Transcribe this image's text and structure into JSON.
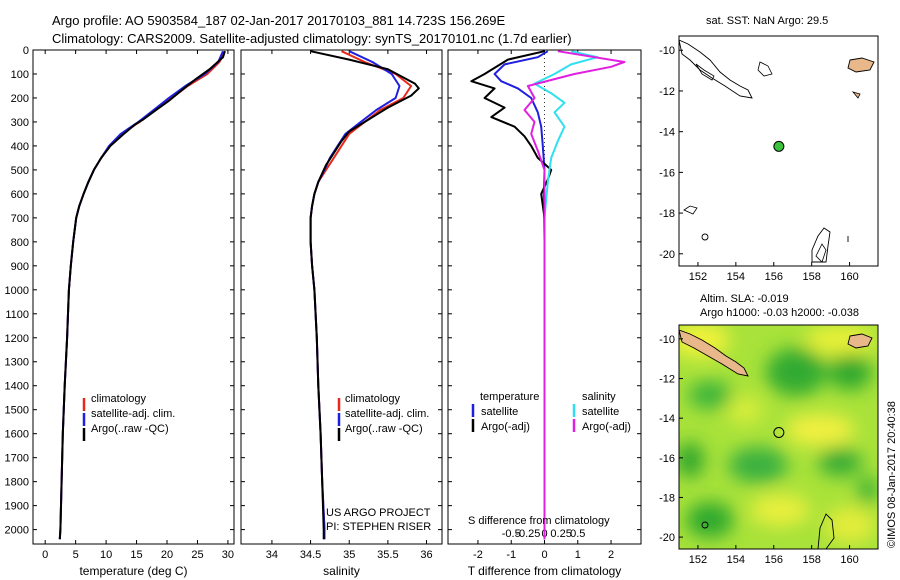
{
  "header": {
    "line1": "Argo profile: AO 5903584_187 02-Jan-2017 20170103_881 14.723S 156.269E",
    "line2": "Climatology: CARS2009. Satellite-adjusted climatology: synTS_20170101.nc (1.7d earlier)"
  },
  "colors": {
    "climatology": "#e8281a",
    "satellite": "#1f1fe0",
    "argo": "#000000",
    "sat_salinity": "#2ee0f0",
    "argo_salinity": "#e020e0",
    "float": "#3bc43b",
    "land": "#e8b88a"
  },
  "depth_ticks": [
    "0",
    "100",
    "200",
    "300",
    "400",
    "500",
    "600",
    "700",
    "800",
    "900",
    "1000",
    "1100",
    "1200",
    "1300",
    "1400",
    "1500",
    "1600",
    "1700",
    "1800",
    "1900",
    "2000"
  ],
  "labels": {
    "project": "US ARGO PROJECT",
    "pi": "PI: STEPHEN RISER",
    "sdiff": "S difference from climatology",
    "tdiff": "T difference from climatology",
    "sst": "sat. SST: NaN Argo: 29.5",
    "sla": "Altim. SLA: -0.019",
    "h": "Argo h1000: -0.03 h2000: -0.038",
    "credit": "©IMOS 08-Jan-2017 20:40:38"
  },
  "legend_profiles": [
    "climatology",
    "satellite-adj. clim.",
    "Argo(..raw -QC)"
  ],
  "legend_diff": {
    "temp_title": "temperature",
    "sal_title": "salinity",
    "satellite": "satellite",
    "argo": "Argo(-adj)"
  },
  "chart_data": [
    {
      "type": "line",
      "xlabel": "temperature (deg C)",
      "xlim": [
        -2,
        31
      ],
      "ylim": [
        2060,
        0
      ],
      "x_ticks": [
        0,
        5,
        10,
        15,
        20,
        25,
        30
      ],
      "x_tick_labels": [
        "0",
        "5",
        "10",
        "15",
        "20",
        "25",
        "30"
      ],
      "series": [
        {
          "name": "climatology",
          "color": "#e8281a",
          "values": [
            [
              29.5,
              5
            ],
            [
              28.6,
              50
            ],
            [
              26.6,
              100
            ],
            [
              23.4,
              150
            ],
            [
              20.8,
              200
            ],
            [
              18.0,
              250
            ],
            [
              15.5,
              300
            ],
            [
              12.5,
              350
            ],
            [
              10.6,
              400
            ],
            [
              9.2,
              450
            ],
            [
              8.0,
              500
            ],
            [
              7.1,
              550
            ],
            [
              6.3,
              600
            ],
            [
              5.6,
              650
            ],
            [
              5.1,
              700
            ],
            [
              4.6,
              800
            ],
            [
              4.2,
              900
            ],
            [
              3.9,
              1000
            ],
            [
              3.6,
              1200
            ],
            [
              3.2,
              1400
            ],
            [
              2.9,
              1600
            ],
            [
              2.7,
              1800
            ],
            [
              2.5,
              2000
            ],
            [
              2.4,
              2040
            ]
          ]
        },
        {
          "name": "satellite-adj. clim.",
          "color": "#1f1fe0",
          "values": [
            [
              29.2,
              5
            ],
            [
              28.4,
              50
            ],
            [
              26.2,
              100
            ],
            [
              23.0,
              150
            ],
            [
              20.3,
              200
            ],
            [
              17.8,
              250
            ],
            [
              15.3,
              300
            ],
            [
              12.4,
              350
            ],
            [
              10.5,
              400
            ],
            [
              9.2,
              450
            ],
            [
              8.0,
              500
            ],
            [
              7.1,
              550
            ],
            [
              6.3,
              600
            ],
            [
              5.6,
              650
            ],
            [
              5.1,
              700
            ],
            [
              4.6,
              800
            ],
            [
              4.2,
              900
            ],
            [
              3.9,
              1000
            ],
            [
              3.6,
              1200
            ],
            [
              3.2,
              1400
            ],
            [
              2.9,
              1600
            ],
            [
              2.7,
              1800
            ],
            [
              2.5,
              2000
            ],
            [
              2.4,
              2040
            ]
          ]
        },
        {
          "name": "Argo(..raw -QC)",
          "color": "#000000",
          "values": [
            [
              29.5,
              5
            ],
            [
              29.2,
              30
            ],
            [
              27.0,
              80
            ],
            [
              24.8,
              120
            ],
            [
              22.3,
              170
            ],
            [
              20.4,
              210
            ],
            [
              18.2,
              250
            ],
            [
              16.1,
              290
            ],
            [
              14.8,
              310
            ],
            [
              12.9,
              350
            ],
            [
              10.7,
              400
            ],
            [
              9.2,
              450
            ],
            [
              8.0,
              500
            ],
            [
              7.1,
              550
            ],
            [
              6.3,
              600
            ],
            [
              5.6,
              650
            ],
            [
              5.1,
              700
            ],
            [
              4.6,
              800
            ],
            [
              4.2,
              900
            ],
            [
              3.9,
              1000
            ],
            [
              3.6,
              1200
            ],
            [
              3.2,
              1400
            ],
            [
              2.9,
              1600
            ],
            [
              2.7,
              1800
            ],
            [
              2.5,
              2000
            ],
            [
              2.4,
              2040
            ]
          ]
        }
      ]
    },
    {
      "type": "line",
      "xlabel": "salinity",
      "xlim": [
        33.6,
        36.2
      ],
      "ylim": [
        2060,
        0
      ],
      "x_ticks": [
        34,
        34.5,
        35,
        35.5,
        36
      ],
      "x_tick_labels": [
        "34",
        "34.5",
        "35",
        "35.5",
        "36"
      ],
      "series": [
        {
          "name": "climatology",
          "color": "#e8281a",
          "values": [
            [
              34.9,
              5
            ],
            [
              35.2,
              50
            ],
            [
              35.6,
              100
            ],
            [
              35.8,
              150
            ],
            [
              35.7,
              200
            ],
            [
              35.4,
              250
            ],
            [
              35.2,
              300
            ],
            [
              35.0,
              350
            ],
            [
              34.9,
              400
            ],
            [
              34.8,
              450
            ],
            [
              34.7,
              500
            ],
            [
              34.6,
              550
            ],
            [
              34.55,
              600
            ],
            [
              34.52,
              650
            ],
            [
              34.5,
              700
            ],
            [
              34.5,
              800
            ],
            [
              34.52,
              900
            ],
            [
              34.55,
              1000
            ],
            [
              34.58,
              1200
            ],
            [
              34.6,
              1400
            ],
            [
              34.63,
              1600
            ],
            [
              34.65,
              1800
            ],
            [
              34.68,
              2000
            ],
            [
              34.68,
              2040
            ]
          ]
        },
        {
          "name": "satellite-adj. clim.",
          "color": "#1f1fe0",
          "values": [
            [
              35.0,
              5
            ],
            [
              35.3,
              50
            ],
            [
              35.55,
              100
            ],
            [
              35.65,
              150
            ],
            [
              35.6,
              200
            ],
            [
              35.35,
              250
            ],
            [
              35.15,
              300
            ],
            [
              34.95,
              350
            ],
            [
              34.85,
              400
            ],
            [
              34.75,
              450
            ],
            [
              34.68,
              500
            ],
            [
              34.6,
              550
            ],
            [
              34.55,
              600
            ],
            [
              34.52,
              650
            ],
            [
              34.5,
              700
            ],
            [
              34.5,
              800
            ],
            [
              34.52,
              900
            ],
            [
              34.55,
              1000
            ],
            [
              34.58,
              1200
            ],
            [
              34.6,
              1400
            ],
            [
              34.63,
              1600
            ],
            [
              34.65,
              1800
            ],
            [
              34.68,
              2000
            ],
            [
              34.68,
              2040
            ]
          ]
        },
        {
          "name": "Argo(..raw -QC)",
          "color": "#000000",
          "values": [
            [
              34.5,
              5
            ],
            [
              35.0,
              40
            ],
            [
              35.5,
              80
            ],
            [
              35.85,
              140
            ],
            [
              35.9,
              160
            ],
            [
              35.8,
              190
            ],
            [
              35.5,
              240
            ],
            [
              35.25,
              290
            ],
            [
              35.0,
              340
            ],
            [
              34.9,
              380
            ],
            [
              34.8,
              430
            ],
            [
              34.7,
              480
            ],
            [
              34.6,
              550
            ],
            [
              34.55,
              600
            ],
            [
              34.52,
              650
            ],
            [
              34.5,
              700
            ],
            [
              34.5,
              800
            ],
            [
              34.52,
              900
            ],
            [
              34.55,
              1000
            ],
            [
              34.58,
              1200
            ],
            [
              34.6,
              1400
            ],
            [
              34.63,
              1600
            ],
            [
              34.65,
              1800
            ],
            [
              34.67,
              2000
            ],
            [
              34.67,
              2040
            ]
          ]
        }
      ]
    },
    {
      "type": "line",
      "xlabel": "T difference from climatology",
      "xlim": [
        -2.9,
        2.9
      ],
      "ylim": [
        2060,
        0
      ],
      "x_ticks": [
        -2,
        -1,
        0,
        1,
        2
      ],
      "x_tick_labels": [
        "-2",
        "-1",
        "0",
        "1",
        "2"
      ],
      "s_ticks": [
        -1,
        -0.5,
        0,
        0.5,
        1
      ],
      "s_tick_labels": [
        "-0.5",
        "-0.25",
        "0",
        "0.25",
        "0.5"
      ],
      "series": [
        {
          "name": "T satellite",
          "color": "#1f1fe0",
          "values": [
            [
              0.1,
              5
            ],
            [
              -0.2,
              30
            ],
            [
              -1.2,
              60
            ],
            [
              -1.5,
              100
            ],
            [
              -1.3,
              130
            ],
            [
              -0.8,
              160
            ],
            [
              -0.4,
              200
            ],
            [
              -0.2,
              260
            ],
            [
              -0.1,
              320
            ],
            [
              -0.05,
              400
            ],
            [
              0.0,
              500
            ],
            [
              -0.02,
              600
            ],
            [
              0.0,
              800
            ],
            [
              0.0,
              1000
            ],
            [
              0.0,
              1400
            ],
            [
              0.0,
              1800
            ],
            [
              0.0,
              2040
            ]
          ]
        },
        {
          "name": "T Argo(-adj)",
          "color": "#000000",
          "values": [
            [
              0.0,
              5
            ],
            [
              -1.1,
              40
            ],
            [
              -1.8,
              100
            ],
            [
              -2.2,
              130
            ],
            [
              -1.5,
              160
            ],
            [
              -1.8,
              200
            ],
            [
              -1.2,
              240
            ],
            [
              -1.6,
              280
            ],
            [
              -0.9,
              320
            ],
            [
              -0.6,
              360
            ],
            [
              -0.4,
              400
            ],
            [
              -0.2,
              450
            ],
            [
              0.2,
              500
            ],
            [
              0.1,
              540
            ],
            [
              -0.1,
              600
            ],
            [
              0.0,
              700
            ],
            [
              0.0,
              1000
            ],
            [
              0.0,
              1500
            ],
            [
              0.0,
              2040
            ]
          ]
        },
        {
          "name": "S satellite",
          "color": "#2ee0f0",
          "values": [
            [
              0.8,
              5
            ],
            [
              1.6,
              30
            ],
            [
              0.8,
              60
            ],
            [
              0.3,
              100
            ],
            [
              -0.3,
              140
            ],
            [
              0.2,
              180
            ],
            [
              0.6,
              220
            ],
            [
              0.3,
              260
            ],
            [
              0.6,
              320
            ],
            [
              0.4,
              380
            ],
            [
              0.2,
              450
            ],
            [
              0.1,
              550
            ],
            [
              0.0,
              700
            ],
            [
              0.0,
              1000
            ],
            [
              0.0,
              1500
            ],
            [
              0.0,
              2040
            ]
          ]
        },
        {
          "name": "S Argo(-adj)",
          "color": "#e020e0",
          "values": [
            [
              0.4,
              5
            ],
            [
              2.4,
              50
            ],
            [
              2.0,
              70
            ],
            [
              0.9,
              100
            ],
            [
              -0.5,
              150
            ],
            [
              -0.3,
              200
            ],
            [
              -0.6,
              250
            ],
            [
              -0.3,
              300
            ],
            [
              -0.4,
              350
            ],
            [
              -0.2,
              420
            ],
            [
              0.0,
              500
            ],
            [
              0.0,
              600
            ],
            [
              0.0,
              1000
            ],
            [
              0.0,
              1500
            ],
            [
              0.0,
              2040
            ]
          ]
        }
      ]
    },
    {
      "type": "scatter",
      "title": "sat. SST: NaN Argo: 29.5",
      "xlim": [
        151,
        161.5
      ],
      "ylim": [
        -20.6,
        -9.3
      ],
      "x_ticks": [
        152,
        154,
        156,
        158,
        160
      ],
      "y_ticks": [
        -10,
        -12,
        -14,
        -16,
        -18,
        -20
      ],
      "points": [
        {
          "x": 156.269,
          "y": -14.723
        }
      ]
    },
    {
      "type": "heatmap",
      "title": "Altim. SLA: -0.019",
      "subtitle": "Argo h1000: -0.03 h2000: -0.038",
      "xlim": [
        151,
        161.5
      ],
      "ylim": [
        -20.6,
        -9.3
      ],
      "x_ticks": [
        152,
        154,
        156,
        158,
        160
      ],
      "y_ticks": [
        -10,
        -12,
        -14,
        -16,
        -18,
        -20
      ],
      "points": [
        {
          "x": 156.269,
          "y": -14.723
        }
      ]
    }
  ]
}
